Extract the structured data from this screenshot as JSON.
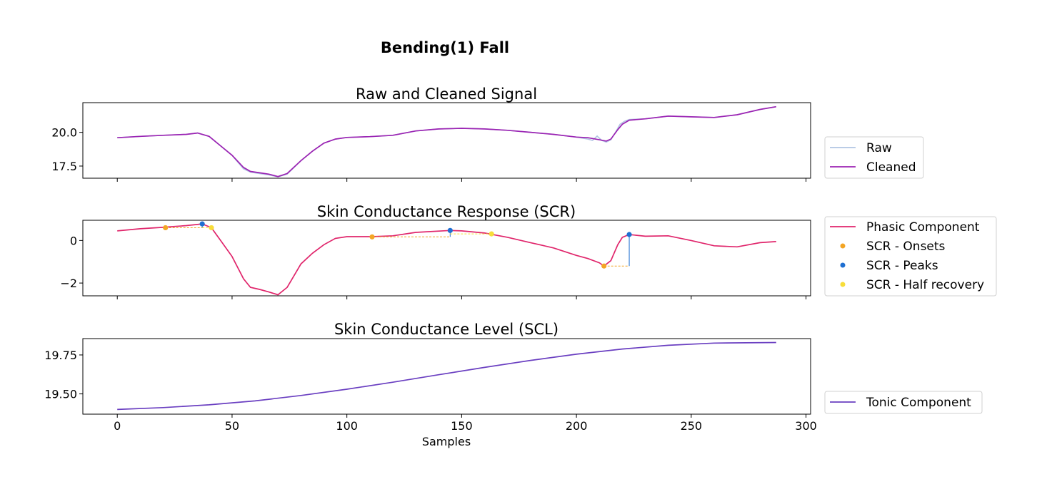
{
  "figure": {
    "title": "Bending(1) Fall"
  },
  "chart_data": [
    {
      "type": "line",
      "title": "Raw and Cleaned Signal",
      "xlabel": "",
      "ylabel": "",
      "xlim": [
        -15,
        302
      ],
      "ylim": [
        16.6,
        22.2
      ],
      "yticks": [
        "17.5",
        "20.0"
      ],
      "ytick_values": [
        17.5,
        20.0
      ],
      "legend_placement": "lower-right-outside",
      "grid": false,
      "series": [
        {
          "name": "Raw",
          "color": "#b1c4e2",
          "x": [
            0,
            10,
            20,
            30,
            35,
            40,
            45,
            50,
            55,
            58,
            62,
            66,
            70,
            74,
            80,
            85,
            90,
            95,
            100,
            110,
            120,
            130,
            140,
            150,
            160,
            170,
            180,
            190,
            200,
            205,
            207,
            209,
            211,
            213,
            215,
            217,
            219,
            221,
            223,
            230,
            240,
            250,
            260,
            270,
            280,
            287
          ],
          "y": [
            19.6,
            19.7,
            19.78,
            19.85,
            19.95,
            19.7,
            19.0,
            18.3,
            17.3,
            17.05,
            16.95,
            16.85,
            16.7,
            16.9,
            17.9,
            18.6,
            19.2,
            19.5,
            19.62,
            19.68,
            19.78,
            20.1,
            20.25,
            20.3,
            20.25,
            20.15,
            20.0,
            19.85,
            19.65,
            19.5,
            19.4,
            19.72,
            19.4,
            19.28,
            19.45,
            20.0,
            20.6,
            20.82,
            20.95,
            21.0,
            21.2,
            21.15,
            21.1,
            21.3,
            21.7,
            21.9
          ]
        },
        {
          "name": "Cleaned",
          "color": "#9b23b3",
          "x": [
            0,
            10,
            20,
            30,
            35,
            40,
            45,
            50,
            55,
            58,
            62,
            66,
            70,
            74,
            80,
            85,
            90,
            95,
            100,
            110,
            120,
            130,
            140,
            150,
            160,
            170,
            180,
            190,
            200,
            205,
            210,
            213,
            215,
            218,
            220,
            223,
            230,
            240,
            250,
            260,
            270,
            280,
            287
          ],
          "y": [
            19.6,
            19.7,
            19.78,
            19.85,
            19.95,
            19.7,
            19.0,
            18.3,
            17.4,
            17.1,
            17.0,
            16.9,
            16.72,
            16.95,
            17.9,
            18.6,
            19.2,
            19.5,
            19.62,
            19.68,
            19.78,
            20.1,
            20.25,
            20.3,
            20.25,
            20.15,
            20.0,
            19.85,
            19.65,
            19.6,
            19.45,
            19.35,
            19.5,
            20.2,
            20.6,
            20.9,
            21.0,
            21.2,
            21.15,
            21.1,
            21.3,
            21.7,
            21.9
          ]
        }
      ]
    },
    {
      "type": "line",
      "title": "Skin Conductance Response (SCR)",
      "xlabel": "",
      "ylabel": "",
      "xlim": [
        -15,
        302
      ],
      "ylim": [
        -2.6,
        0.95
      ],
      "yticks": [
        "−2",
        "0"
      ],
      "ytick_values": [
        -2,
        0
      ],
      "legend_placement": "right-outside",
      "grid": false,
      "series": [
        {
          "name": "Phasic Component",
          "color": "#e0256b",
          "x": [
            0,
            10,
            20,
            30,
            37,
            41,
            45,
            50,
            55,
            58,
            62,
            66,
            70,
            74,
            80,
            85,
            90,
            95,
            100,
            111,
            120,
            130,
            145,
            150,
            160,
            170,
            180,
            190,
            200,
            205,
            210,
            212,
            215,
            218,
            220,
            223,
            230,
            240,
            250,
            260,
            270,
            280,
            287
          ],
          "y": [
            0.45,
            0.55,
            0.62,
            0.7,
            0.78,
            0.6,
            0.0,
            -0.75,
            -1.8,
            -2.2,
            -2.3,
            -2.42,
            -2.55,
            -2.2,
            -1.1,
            -0.6,
            -0.2,
            0.1,
            0.18,
            0.18,
            0.22,
            0.38,
            0.47,
            0.45,
            0.35,
            0.15,
            -0.1,
            -0.35,
            -0.7,
            -0.85,
            -1.05,
            -1.2,
            -0.95,
            -0.2,
            0.15,
            0.28,
            0.2,
            0.22,
            0.0,
            -0.25,
            -0.3,
            -0.1,
            -0.05
          ]
        }
      ],
      "markers": [
        {
          "name": "SCR - Onsets",
          "color": "#f3a524",
          "x": [
            21,
            111,
            212
          ],
          "y": [
            0.6,
            0.17,
            -1.2
          ]
        },
        {
          "name": "SCR - Peaks",
          "color": "#1f6fd1",
          "x": [
            37,
            145,
            223
          ],
          "y": [
            0.78,
            0.47,
            0.28
          ]
        },
        {
          "name": "SCR - Half recovery",
          "color": "#f7dd3a",
          "x": [
            41,
            163
          ],
          "y": [
            0.6,
            0.31
          ]
        }
      ]
    },
    {
      "type": "line",
      "title": "Skin Conductance Level (SCL)",
      "xlabel": "Samples",
      "ylabel": "",
      "xlim": [
        -15,
        302
      ],
      "ylim": [
        19.37,
        19.855
      ],
      "xticks": [
        "0",
        "50",
        "100",
        "150",
        "200",
        "250",
        "300"
      ],
      "xtick_values": [
        0,
        50,
        100,
        150,
        200,
        250,
        300
      ],
      "yticks": [
        "19.50",
        "19.75"
      ],
      "ytick_values": [
        19.5,
        19.75
      ],
      "legend_placement": "lower-right-outside",
      "grid": false,
      "series": [
        {
          "name": "Tonic Component",
          "color": "#6a3fc1",
          "x": [
            0,
            20,
            40,
            60,
            80,
            100,
            120,
            140,
            160,
            180,
            200,
            220,
            240,
            260,
            287
          ],
          "y": [
            19.4,
            19.412,
            19.43,
            19.455,
            19.49,
            19.53,
            19.575,
            19.623,
            19.67,
            19.715,
            19.755,
            19.788,
            19.812,
            19.826,
            19.83
          ]
        }
      ]
    }
  ]
}
